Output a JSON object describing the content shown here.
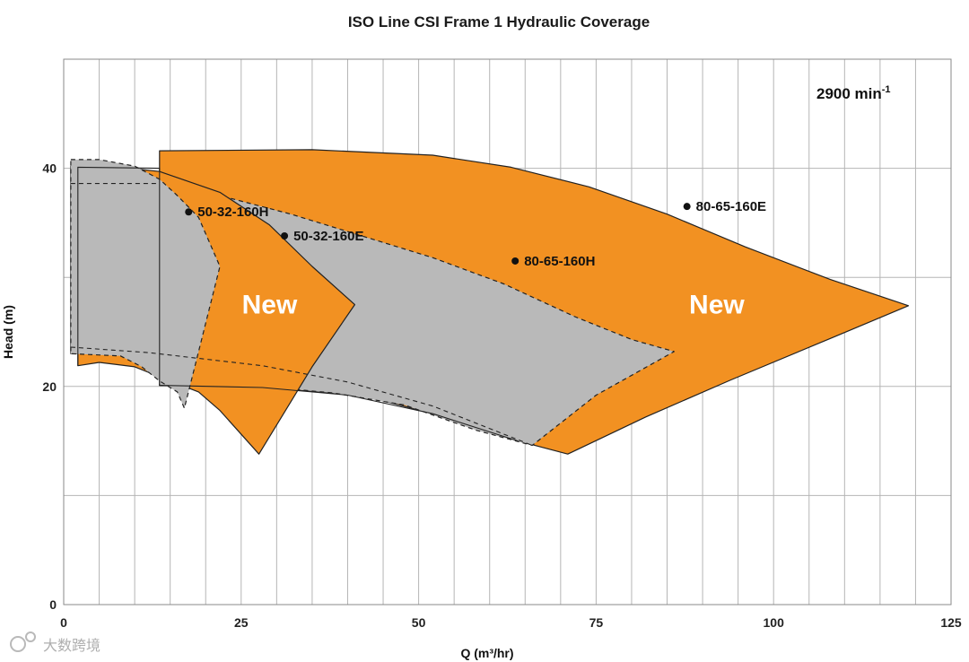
{
  "chart_data": {
    "type": "area",
    "title": "ISO Line CSI Frame 1 Hydraulic Coverage",
    "xlabel": "Q (m³/hr)",
    "ylabel": "Head (m)",
    "xlim": [
      0,
      125
    ],
    "ylim": [
      0,
      50
    ],
    "x_ticks": [
      0,
      25,
      50,
      75,
      100,
      125
    ],
    "y_ticks": [
      0,
      20,
      40
    ],
    "x_grid_step": 5,
    "y_grid_step": 10,
    "speed_label": "2900 min",
    "speed_superscript": "-1",
    "new_labels": [
      {
        "text": "New",
        "x": 29,
        "y": 27.5
      },
      {
        "text": "New",
        "x": 92,
        "y": 27.5
      }
    ],
    "regions": [
      {
        "name": "80-65-160E",
        "fill": "#f29122",
        "stroke": "solid",
        "points": [
          [
            13.5,
            41.6
          ],
          [
            35,
            41.7
          ],
          [
            52,
            41.2
          ],
          [
            63,
            40.1
          ],
          [
            74,
            38.3
          ],
          [
            85,
            35.8
          ],
          [
            96,
            32.8
          ],
          [
            108,
            29.8
          ],
          [
            119,
            27.4
          ],
          [
            108,
            24.4
          ],
          [
            94,
            20.6
          ],
          [
            82,
            17.2
          ],
          [
            71,
            13.8
          ],
          [
            64,
            15.0
          ],
          [
            52,
            17.5
          ],
          [
            42,
            19.2
          ],
          [
            28,
            19.9
          ],
          [
            13.5,
            20.1
          ]
        ]
      },
      {
        "name": "80-65-160H",
        "fill": "#b9b9b9",
        "stroke": "dashed",
        "points": [
          [
            13.5,
            38.5
          ],
          [
            22,
            37.5
          ],
          [
            32,
            35.8
          ],
          [
            42,
            33.8
          ],
          [
            52,
            31.8
          ],
          [
            62,
            29.4
          ],
          [
            72,
            26.4
          ],
          [
            80,
            24.3
          ],
          [
            86,
            23.2
          ],
          [
            75,
            19.2
          ],
          [
            66,
            14.6
          ],
          [
            58,
            16.0
          ],
          [
            48,
            18.3
          ],
          [
            38,
            19.4
          ],
          [
            28,
            20.0
          ],
          [
            13.5,
            20.1
          ]
        ]
      },
      {
        "name": "50-32-160E",
        "fill": "#f29122",
        "stroke": "solid",
        "points": [
          [
            1,
            40.2
          ],
          [
            8,
            40.1
          ],
          [
            13.5,
            39.7
          ],
          [
            22,
            37.8
          ],
          [
            29,
            34.8
          ],
          [
            35,
            31.0
          ],
          [
            41,
            27.5
          ],
          [
            35,
            21.8
          ],
          [
            27.5,
            13.8
          ],
          [
            22,
            17.8
          ],
          [
            19,
            19.5
          ],
          [
            15,
            20.5
          ],
          [
            10,
            21.8
          ],
          [
            5,
            22.2
          ],
          [
            2,
            21.9
          ],
          [
            2,
            23
          ],
          [
            1,
            23
          ]
        ]
      },
      {
        "name": "50-32-160H",
        "fill": "#b9b9b9",
        "stroke": "dashed",
        "points": [
          [
            1,
            40.8
          ],
          [
            5,
            40.8
          ],
          [
            10,
            40.2
          ],
          [
            13.5,
            39.0
          ],
          [
            16,
            37.5
          ],
          [
            19,
            35.5
          ],
          [
            22,
            31.0
          ],
          [
            17,
            18.0
          ],
          [
            16,
            19.5
          ],
          [
            13.5,
            20.5
          ],
          [
            11,
            21.8
          ],
          [
            8,
            22.8
          ],
          [
            1,
            23.0
          ]
        ]
      }
    ],
    "boundary_lines": [
      {
        "name": "50-32-160E-frame",
        "style": "solid",
        "points": [
          [
            2,
            21.9
          ],
          [
            2,
            40.1
          ],
          [
            13.5,
            40.0
          ],
          [
            13.5,
            20.1
          ]
        ]
      },
      {
        "name": "50-32-160E-lower-curve",
        "style": "solid",
        "points": [
          [
            13.5,
            20.1
          ],
          [
            28,
            19.9
          ],
          [
            40,
            19.2
          ],
          [
            52,
            17.5
          ],
          [
            64,
            15.0
          ]
        ]
      },
      {
        "name": "50-32-160H-lower-curve",
        "style": "dashed",
        "points": [
          [
            1,
            23.6
          ],
          [
            12,
            23.1
          ],
          [
            28,
            21.9
          ],
          [
            40,
            20.4
          ],
          [
            52,
            18.2
          ],
          [
            66,
            14.6
          ]
        ]
      },
      {
        "name": "80-65-160H-upper-curve",
        "style": "dashed",
        "points": [
          [
            1,
            38.6
          ],
          [
            13.5,
            38.6
          ]
        ]
      }
    ],
    "points": [
      {
        "label": "50-32-160H",
        "x": 17.6,
        "y": 36
      },
      {
        "label": "50-32-160E",
        "x": 31.1,
        "y": 33.8
      },
      {
        "label": "80-65-160H",
        "x": 63.6,
        "y": 31.5
      },
      {
        "label": "80-65-160E",
        "x": 87.8,
        "y": 36.5
      }
    ]
  },
  "watermark": "大数跨境"
}
